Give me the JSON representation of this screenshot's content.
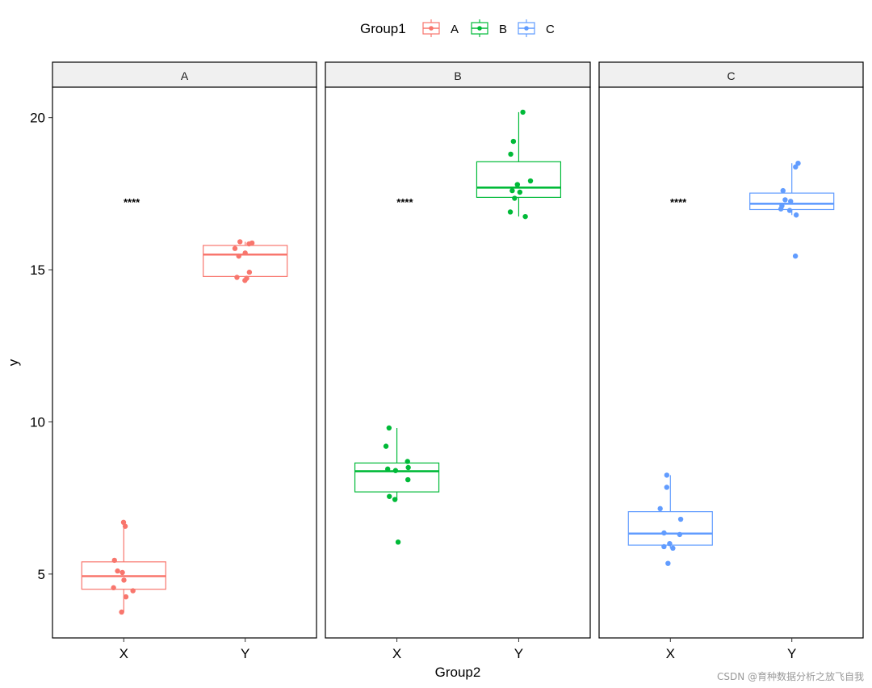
{
  "chart_data": {
    "type": "boxplot-faceted",
    "legend": {
      "title": "Group1",
      "position": "top",
      "entries": [
        {
          "label": "A",
          "color": "#F8766D"
        },
        {
          "label": "B",
          "color": "#00BA38"
        },
        {
          "label": "C",
          "color": "#619CFF"
        }
      ]
    },
    "xlabel": "Group2",
    "ylabel": "y",
    "ylim": [
      2.9,
      21.0
    ],
    "yticks": [
      5,
      10,
      15,
      20
    ],
    "categories": [
      "X",
      "Y"
    ],
    "significance_label": "****",
    "significance_y": 17.2,
    "panels": [
      {
        "facet": "A",
        "color": "#F8766D",
        "boxes": [
          {
            "category": "X",
            "q1": 4.5,
            "median": 4.93,
            "q3": 5.4,
            "whisker_low": 3.75,
            "whisker_high": 6.7,
            "points": [
              6.7,
              6.57,
              5.45,
              5.1,
              5.05,
              4.8,
              4.55,
              4.45,
              4.25,
              3.75
            ]
          },
          {
            "category": "Y",
            "q1": 14.78,
            "median": 15.5,
            "q3": 15.8,
            "whisker_low": 14.65,
            "whisker_high": 15.92,
            "points": [
              15.92,
              15.88,
              15.85,
              15.7,
              15.55,
              15.45,
              14.92,
              14.75,
              14.72,
              14.65
            ]
          }
        ]
      },
      {
        "facet": "B",
        "color": "#00BA38",
        "boxes": [
          {
            "category": "X",
            "q1": 7.7,
            "median": 8.38,
            "q3": 8.65,
            "whisker_low": 7.45,
            "whisker_high": 9.8,
            "points": [
              9.8,
              9.2,
              8.7,
              8.5,
              8.45,
              8.4,
              8.1,
              7.55,
              7.45,
              6.05
            ]
          },
          {
            "category": "Y",
            "q1": 17.38,
            "median": 17.7,
            "q3": 18.55,
            "whisker_low": 16.75,
            "whisker_high": 20.18,
            "points": [
              20.18,
              19.22,
              18.8,
              17.92,
              17.8,
              17.6,
              17.55,
              17.35,
              16.9,
              16.75
            ]
          }
        ]
      },
      {
        "facet": "C",
        "color": "#619CFF",
        "boxes": [
          {
            "category": "X",
            "q1": 5.95,
            "median": 6.33,
            "q3": 7.05,
            "whisker_low": 5.85,
            "whisker_high": 8.25,
            "points": [
              8.25,
              7.85,
              7.15,
              6.8,
              6.35,
              6.3,
              6.0,
              5.9,
              5.85,
              5.35
            ]
          },
          {
            "category": "Y",
            "q1": 16.98,
            "median": 17.17,
            "q3": 17.52,
            "whisker_low": 16.8,
            "whisker_high": 18.5,
            "points": [
              18.5,
              18.38,
              17.6,
              17.3,
              17.25,
              17.1,
              17.0,
              16.95,
              16.8,
              15.45
            ]
          }
        ]
      }
    ]
  },
  "watermark": "CSDN @育种数据分析之放飞自我"
}
